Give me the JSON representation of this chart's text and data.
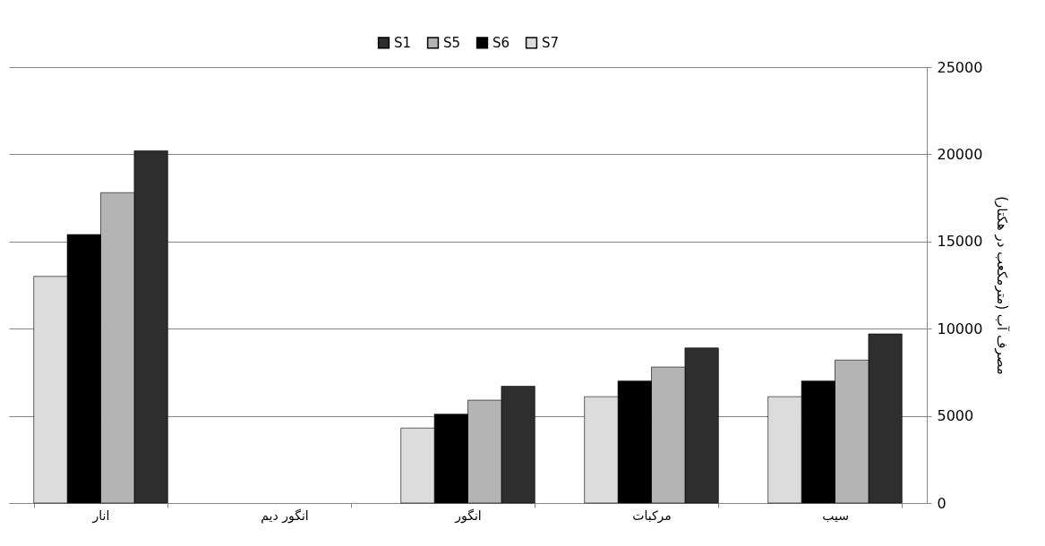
{
  "chart_data": {
    "type": "bar",
    "ylabel": "مصرف آب (مترمکعب در هکتار)",
    "categories": [
      "انار",
      "انگور دیم",
      "انگور",
      "مرکبات",
      "سیب"
    ],
    "series": [
      {
        "name": "S1",
        "color": "#2e2e2e",
        "values": [
          20200,
          null,
          6700,
          8900,
          9700
        ]
      },
      {
        "name": "S5",
        "color": "#b4b4b4",
        "values": [
          17800,
          null,
          5900,
          7800,
          8200
        ]
      },
      {
        "name": "S6",
        "color": "#000000",
        "values": [
          15400,
          null,
          5100,
          7000,
          7000
        ]
      },
      {
        "name": "S7",
        "color": "#dcdcdc",
        "values": [
          13000,
          null,
          4300,
          6100,
          6100
        ]
      }
    ],
    "ylim": [
      0,
      25000
    ],
    "yticks": [
      0,
      5000,
      10000,
      15000,
      20000,
      25000
    ],
    "grid": "y",
    "legend": "top"
  }
}
